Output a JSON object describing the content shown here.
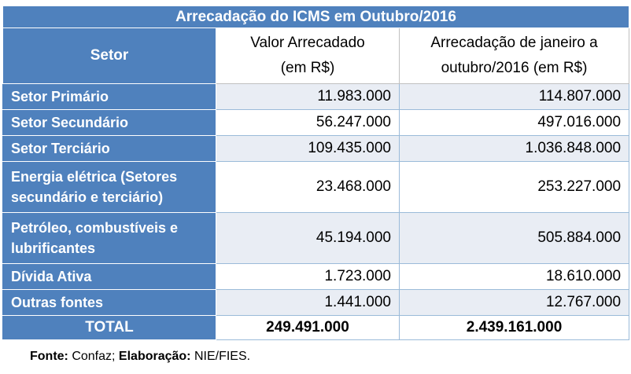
{
  "table": {
    "title": "Arrecadação do ICMS em Outubro/2016",
    "headers": {
      "sector": "Setor",
      "value_line1": "Valor Arrecadado",
      "value_line2": "(em R$)",
      "ytd_line1": "Arrecadação de janeiro a",
      "ytd_line2": "outubro/2016 (em R$)"
    },
    "rows": [
      {
        "label": "Setor Primário",
        "value": "11.983.000",
        "ytd": "114.807.000"
      },
      {
        "label": "Setor Secundário",
        "value": "56.247.000",
        "ytd": "497.016.000"
      },
      {
        "label": "Setor Terciário",
        "value": "109.435.000",
        "ytd": "1.036.848.000"
      },
      {
        "label": "Energia elétrica (Setores secundário e terciário)",
        "value": "23.468.000",
        "ytd": "253.227.000"
      },
      {
        "label": "Petróleo, combustíveis e lubrificantes",
        "value": "45.194.000",
        "ytd": "505.884.000"
      },
      {
        "label": "Dívida Ativa",
        "value": "1.723.000",
        "ytd": "18.610.000"
      },
      {
        "label": "Outras fontes",
        "value": "1.441.000",
        "ytd": "12.767.000"
      }
    ],
    "total": {
      "label": "TOTAL",
      "value": "249.491.000",
      "ytd": "2.439.161.000"
    }
  },
  "footnote": {
    "source_label": "Fonte:",
    "source_value": "Confaz;",
    "elab_label": "Elaboração:",
    "elab_value": "NIE/FIES."
  },
  "colors": {
    "header_blue": "#4f81bd",
    "row_shade": "#e9edf4"
  }
}
